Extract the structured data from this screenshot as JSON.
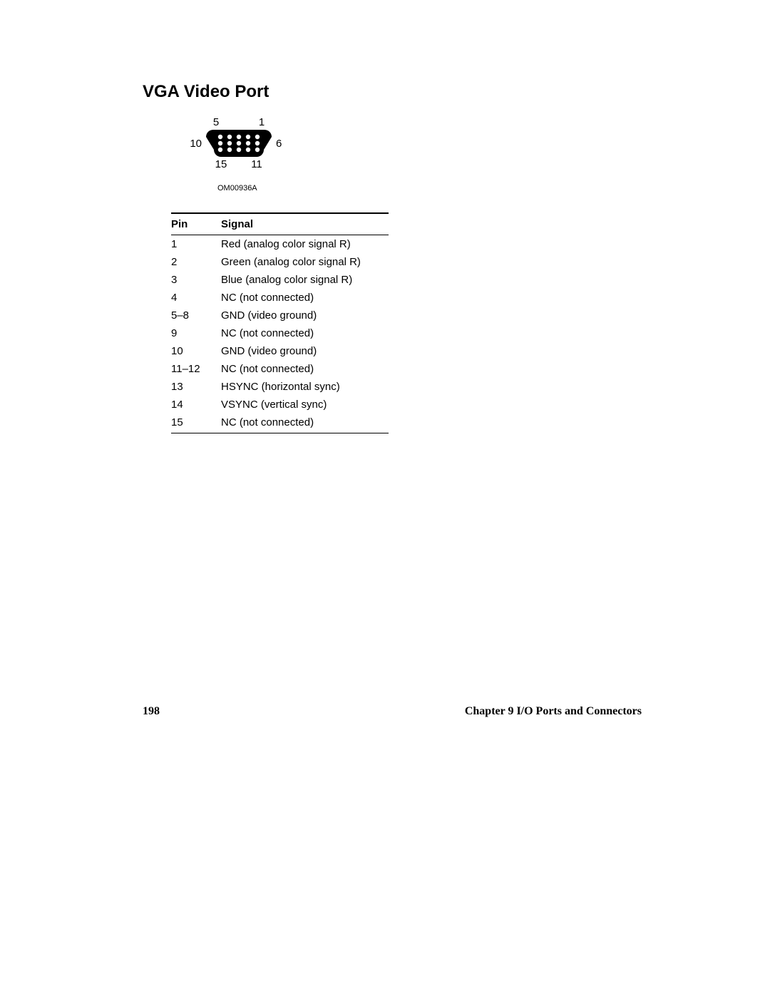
{
  "title": "VGA Video Port",
  "diagram": {
    "code": "OM00936A",
    "labels": {
      "tl": "5",
      "tr": "1",
      "ml": "10",
      "mr": "6",
      "bl": "15",
      "br": "11"
    },
    "connector": {
      "fill": "#000000",
      "hole_fill": "#ffffff",
      "width_top": 92,
      "width_bot": 70,
      "height": 38,
      "corner_r": 10,
      "hole_r": 3.2,
      "row1_count": 5,
      "row2_count": 5,
      "row3_count": 5,
      "hole_spacing": 13
    }
  },
  "table": {
    "headers": {
      "pin": "Pin",
      "signal": "Signal"
    },
    "rows": [
      {
        "pin": "1",
        "signal": "Red (analog color signal R)"
      },
      {
        "pin": "2",
        "signal": "Green (analog color signal R)"
      },
      {
        "pin": "3",
        "signal": "Blue (analog color signal R)"
      },
      {
        "pin": "4",
        "signal": "NC (not connected)"
      },
      {
        "pin": "5–8",
        "signal": "GND (video ground)"
      },
      {
        "pin": "9",
        "signal": "NC (not connected)"
      },
      {
        "pin": "10",
        "signal": "GND (video ground)"
      },
      {
        "pin": "11–12",
        "signal": "NC (not connected)"
      },
      {
        "pin": "13",
        "signal": "HSYNC (horizontal sync)"
      },
      {
        "pin": "14",
        "signal": "VSYNC (vertical sync)"
      },
      {
        "pin": "15",
        "signal": "NC (not connected)"
      }
    ]
  },
  "footer": {
    "page_number": "198",
    "chapter": "Chapter 9  I/O Ports and Connectors"
  }
}
